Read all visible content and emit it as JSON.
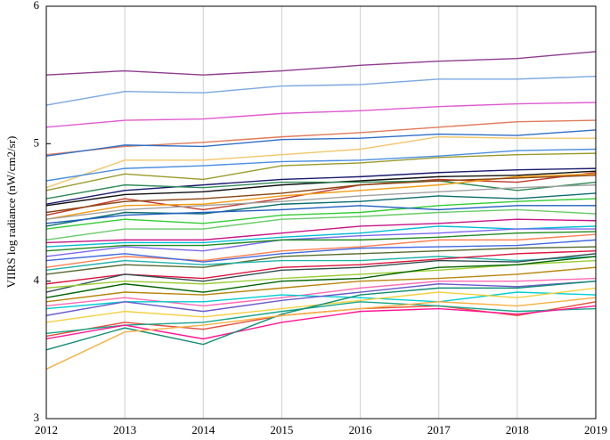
{
  "chart_data": {
    "type": "line",
    "ylabel": "VIIRS log radiance (nW/cm2/sr)",
    "x": [
      2012,
      2013,
      2014,
      2015,
      2016,
      2017,
      2018,
      2019
    ],
    "xlim": [
      2012,
      2019
    ],
    "xticks": [
      2012,
      2013,
      2014,
      2015,
      2016,
      2017,
      2018,
      2019
    ],
    "ylim": [
      3,
      6
    ],
    "yticks": [
      3,
      4,
      5,
      6
    ],
    "grid": "x",
    "series": [
      {
        "color": "#8e3b8e",
        "values": [
          5.5,
          5.53,
          5.5,
          5.53,
          5.57,
          5.6,
          5.62,
          5.67
        ]
      },
      {
        "color": "#7aa7e0",
        "values": [
          5.28,
          5.38,
          5.37,
          5.42,
          5.43,
          5.47,
          5.47,
          5.49
        ]
      },
      {
        "color": "#e05ad0",
        "values": [
          5.12,
          5.17,
          5.18,
          5.22,
          5.24,
          5.27,
          5.29,
          5.3
        ]
      },
      {
        "color": "#e07a5a",
        "values": [
          4.92,
          4.98,
          5.01,
          5.05,
          5.08,
          5.12,
          5.16,
          5.17
        ]
      },
      {
        "color": "#2e6fc7",
        "values": [
          4.91,
          4.99,
          4.98,
          5.03,
          5.04,
          5.07,
          5.06,
          5.1
        ]
      },
      {
        "color": "#f2c66a",
        "values": [
          4.68,
          4.88,
          4.88,
          4.92,
          4.96,
          5.05,
          5.04,
          5.04
        ]
      },
      {
        "color": "#4a8ee0",
        "values": [
          4.73,
          4.82,
          4.84,
          4.87,
          4.88,
          4.91,
          4.95,
          4.96
        ]
      },
      {
        "color": "#9a9a2a",
        "values": [
          4.66,
          4.78,
          4.74,
          4.84,
          4.86,
          4.9,
          4.92,
          4.93
        ]
      },
      {
        "color": "#1a1a6e",
        "values": [
          4.56,
          4.66,
          4.7,
          4.74,
          4.76,
          4.79,
          4.81,
          4.82
        ]
      },
      {
        "color": "#111111",
        "values": [
          4.55,
          4.63,
          4.65,
          4.7,
          4.73,
          4.76,
          4.77,
          4.8
        ]
      },
      {
        "color": "#c0392b",
        "values": [
          4.48,
          4.6,
          4.52,
          4.6,
          4.7,
          4.74,
          4.72,
          4.79
        ]
      },
      {
        "color": "#2e8b57",
        "values": [
          4.6,
          4.7,
          4.68,
          4.72,
          4.72,
          4.73,
          4.66,
          4.72
        ]
      },
      {
        "color": "#f39c12",
        "values": [
          4.45,
          4.55,
          4.56,
          4.62,
          4.66,
          4.7,
          4.76,
          4.78
        ]
      },
      {
        "color": "#8b4513",
        "values": [
          4.5,
          4.58,
          4.6,
          4.64,
          4.7,
          4.73,
          4.75,
          4.77
        ]
      },
      {
        "color": "#a0a0a0",
        "values": [
          4.45,
          4.52,
          4.55,
          4.58,
          4.62,
          4.65,
          4.68,
          4.7
        ]
      },
      {
        "color": "#0b6e6e",
        "values": [
          4.4,
          4.5,
          4.49,
          4.56,
          4.58,
          4.62,
          4.6,
          4.64
        ]
      },
      {
        "color": "#33cc33",
        "values": [
          4.38,
          4.45,
          4.42,
          4.48,
          4.5,
          4.55,
          4.58,
          4.6
        ]
      },
      {
        "color": "#1f5fbf",
        "values": [
          4.42,
          4.48,
          4.5,
          4.52,
          4.55,
          4.52,
          4.55,
          4.55
        ]
      },
      {
        "color": "#66cc66",
        "values": [
          4.3,
          4.38,
          4.38,
          4.45,
          4.47,
          4.5,
          4.52,
          4.49
        ]
      },
      {
        "color": "#c71585",
        "values": [
          4.28,
          4.3,
          4.3,
          4.35,
          4.4,
          4.42,
          4.45,
          4.44
        ]
      },
      {
        "color": "#00bcd4",
        "values": [
          4.25,
          4.28,
          4.28,
          4.32,
          4.35,
          4.4,
          4.38,
          4.4
        ]
      },
      {
        "color": "#7b68ee",
        "values": [
          4.18,
          4.25,
          4.22,
          4.3,
          4.33,
          4.35,
          4.38,
          4.38
        ]
      },
      {
        "color": "#228b22",
        "values": [
          4.22,
          4.26,
          4.26,
          4.3,
          4.3,
          4.32,
          4.35,
          4.36
        ]
      },
      {
        "color": "#ff7f50",
        "values": [
          4.1,
          4.18,
          4.15,
          4.22,
          4.25,
          4.3,
          4.3,
          4.34
        ]
      },
      {
        "color": "#4169e1",
        "values": [
          4.15,
          4.2,
          4.14,
          4.2,
          4.24,
          4.25,
          4.26,
          4.3
        ]
      },
      {
        "color": "#556b2f",
        "values": [
          4.05,
          4.12,
          4.1,
          4.18,
          4.2,
          4.22,
          4.24,
          4.25
        ]
      },
      {
        "color": "#20b2aa",
        "values": [
          4.08,
          4.15,
          4.12,
          4.15,
          4.15,
          4.18,
          4.15,
          4.18
        ]
      },
      {
        "color": "#dc143c",
        "values": [
          3.98,
          4.05,
          4.02,
          4.1,
          4.12,
          4.16,
          4.2,
          4.22
        ]
      },
      {
        "color": "#2f4f4f",
        "values": [
          3.92,
          4.05,
          4.0,
          4.08,
          4.1,
          4.15,
          4.14,
          4.2
        ]
      },
      {
        "color": "#9acd32",
        "values": [
          3.95,
          4.0,
          3.98,
          4.02,
          4.05,
          4.08,
          4.12,
          4.15
        ]
      },
      {
        "color": "#006400",
        "values": [
          3.88,
          3.98,
          3.92,
          4.0,
          4.02,
          4.1,
          4.12,
          4.18
        ]
      },
      {
        "color": "#b8860b",
        "values": [
          3.85,
          3.92,
          3.9,
          3.95,
          4.0,
          4.02,
          4.05,
          4.1
        ]
      },
      {
        "color": "#ff69b4",
        "values": [
          3.82,
          3.88,
          3.82,
          3.88,
          3.95,
          4.0,
          4.0,
          4.02
        ]
      },
      {
        "color": "#00ced1",
        "values": [
          3.8,
          3.85,
          3.85,
          3.9,
          3.88,
          3.85,
          3.92,
          3.9
        ]
      },
      {
        "color": "#6a5acd",
        "values": [
          3.75,
          3.85,
          3.78,
          3.86,
          3.92,
          3.98,
          3.96,
          4.0
        ]
      },
      {
        "color": "#f4d03f",
        "values": [
          3.7,
          3.78,
          3.74,
          3.8,
          3.86,
          3.92,
          3.88,
          3.95
        ]
      },
      {
        "color": "#e74c3c",
        "values": [
          3.6,
          3.7,
          3.65,
          3.75,
          3.8,
          3.82,
          3.75,
          3.85
        ]
      },
      {
        "color": "#17a589",
        "values": [
          3.62,
          3.68,
          3.7,
          3.78,
          3.85,
          3.82,
          3.78,
          3.8
        ]
      },
      {
        "color": "#ff1493",
        "values": [
          3.58,
          3.68,
          3.58,
          3.7,
          3.78,
          3.8,
          3.76,
          3.82
        ]
      },
      {
        "color": "#138d75",
        "values": [
          3.5,
          3.66,
          3.54,
          3.76,
          3.9,
          3.95,
          3.95,
          4.0
        ]
      },
      {
        "color": "#f5b041",
        "values": [
          3.36,
          3.63,
          3.68,
          3.75,
          3.8,
          3.85,
          3.82,
          3.88
        ]
      }
    ]
  }
}
